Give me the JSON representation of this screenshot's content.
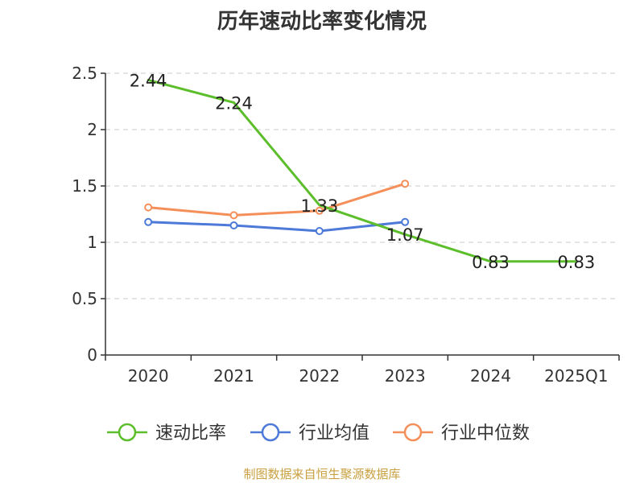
{
  "chart_title": "历年速动比率变化情况",
  "source_note": "制图数据来自恒生聚源数据库",
  "colors": {
    "quick_ratio": "#5cbe2a",
    "industry_avg": "#4d7ad8",
    "industry_median": "#f58f5a",
    "axis": "#333333",
    "grid": "#c8c8c8",
    "source_text": "#c8a040"
  },
  "chart_data": {
    "type": "line",
    "title": "历年速动比率变化情况",
    "categories": [
      "2020",
      "2021",
      "2022",
      "2023",
      "2024",
      "2025Q1"
    ],
    "ylim": [
      0,
      2.5
    ],
    "yticks": [
      "0",
      "0.5",
      "1",
      "1.5",
      "2",
      "2.5"
    ],
    "ytick_values": [
      0,
      0.5,
      1,
      1.5,
      2,
      2.5
    ],
    "grid": true,
    "legend_position": "bottom",
    "series": [
      {
        "name": "速动比率",
        "key": "quick_ratio",
        "values": [
          2.44,
          2.24,
          1.33,
          1.07,
          0.83,
          0.83
        ],
        "labels": [
          "2.44",
          "2.24",
          "1.33",
          "1.07",
          "0.83",
          "0.83"
        ],
        "show_markers": false
      },
      {
        "name": "行业均值",
        "key": "industry_avg",
        "values": [
          1.18,
          1.15,
          1.1,
          1.18,
          null,
          null
        ],
        "show_markers": true
      },
      {
        "name": "行业中位数",
        "key": "industry_median",
        "values": [
          1.31,
          1.24,
          1.28,
          1.52,
          null,
          null
        ],
        "show_markers": true
      }
    ]
  }
}
